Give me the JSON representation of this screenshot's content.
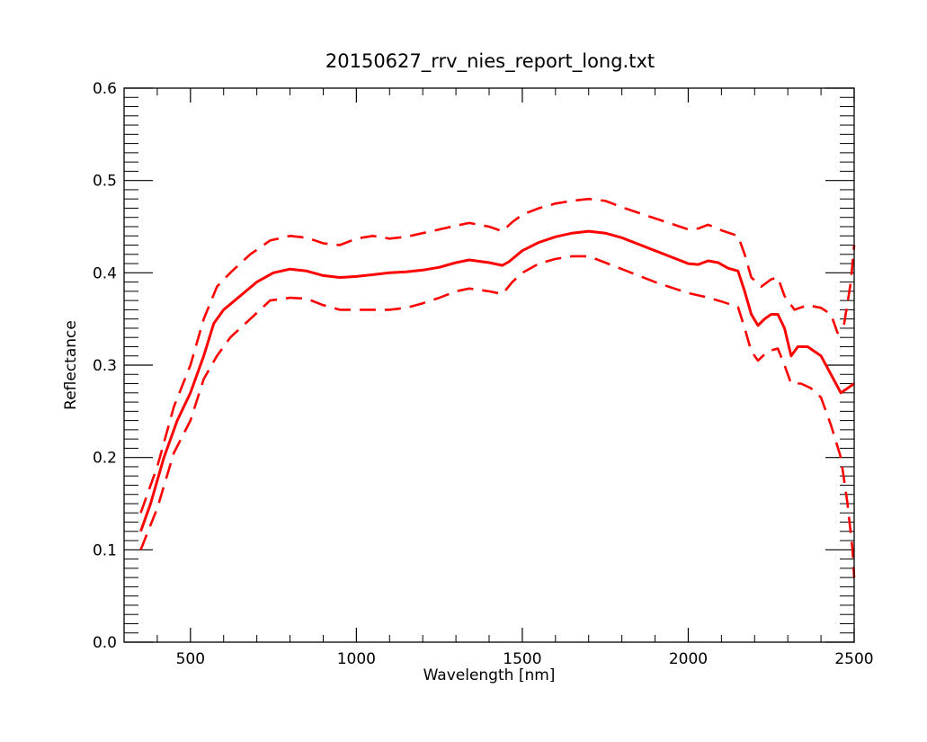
{
  "chart_data": {
    "type": "line",
    "title": "20150627_rrv_nies_report_long.txt",
    "xlabel": "Wavelength [nm]",
    "ylabel": "Reflectance",
    "xlim": [
      300,
      2500
    ],
    "ylim": [
      0.0,
      0.6
    ],
    "x_ticks": [
      500,
      1000,
      1500,
      2000,
      2500
    ],
    "x_tick_labels": [
      "500",
      "1000",
      "1500",
      "2000",
      "2500"
    ],
    "y_ticks": [
      0.0,
      0.1,
      0.2,
      0.3,
      0.4,
      0.5,
      0.6
    ],
    "y_tick_labels": [
      "0.0",
      "0.1",
      "0.2",
      "0.3",
      "0.4",
      "0.5",
      "0.6"
    ],
    "x_minor_step": 100,
    "y_minor_step": 0.01,
    "grid": false,
    "color": "#ff0000",
    "series": [
      {
        "style": "solid",
        "points": [
          [
            350,
            0.12
          ],
          [
            380,
            0.15
          ],
          [
            420,
            0.2
          ],
          [
            460,
            0.24
          ],
          [
            500,
            0.27
          ],
          [
            540,
            0.31
          ],
          [
            570,
            0.345
          ],
          [
            600,
            0.36
          ],
          [
            650,
            0.375
          ],
          [
            700,
            0.39
          ],
          [
            750,
            0.4
          ],
          [
            800,
            0.404
          ],
          [
            850,
            0.402
          ],
          [
            900,
            0.397
          ],
          [
            950,
            0.395
          ],
          [
            1000,
            0.396
          ],
          [
            1050,
            0.398
          ],
          [
            1100,
            0.4
          ],
          [
            1150,
            0.401
          ],
          [
            1200,
            0.403
          ],
          [
            1250,
            0.406
          ],
          [
            1300,
            0.411
          ],
          [
            1340,
            0.414
          ],
          [
            1400,
            0.411
          ],
          [
            1440,
            0.408
          ],
          [
            1460,
            0.412
          ],
          [
            1500,
            0.424
          ],
          [
            1550,
            0.433
          ],
          [
            1600,
            0.439
          ],
          [
            1650,
            0.443
          ],
          [
            1700,
            0.445
          ],
          [
            1750,
            0.443
          ],
          [
            1800,
            0.438
          ],
          [
            1850,
            0.431
          ],
          [
            1900,
            0.424
          ],
          [
            1950,
            0.417
          ],
          [
            2000,
            0.41
          ],
          [
            2030,
            0.409
          ],
          [
            2060,
            0.413
          ],
          [
            2090,
            0.411
          ],
          [
            2120,
            0.405
          ],
          [
            2150,
            0.402
          ],
          [
            2170,
            0.38
          ],
          [
            2190,
            0.355
          ],
          [
            2210,
            0.343
          ],
          [
            2230,
            0.35
          ],
          [
            2250,
            0.355
          ],
          [
            2270,
            0.355
          ],
          [
            2290,
            0.34
          ],
          [
            2310,
            0.31
          ],
          [
            2330,
            0.32
          ],
          [
            2360,
            0.32
          ],
          [
            2380,
            0.315
          ],
          [
            2400,
            0.31
          ],
          [
            2430,
            0.29
          ],
          [
            2460,
            0.27
          ],
          [
            2480,
            0.275
          ],
          [
            2500,
            0.28
          ]
        ]
      },
      {
        "style": "dashed",
        "points": [
          [
            350,
            0.14
          ],
          [
            400,
            0.19
          ],
          [
            450,
            0.255
          ],
          [
            500,
            0.3
          ],
          [
            540,
            0.35
          ],
          [
            580,
            0.385
          ],
          [
            620,
            0.4
          ],
          [
            680,
            0.42
          ],
          [
            740,
            0.435
          ],
          [
            800,
            0.44
          ],
          [
            850,
            0.438
          ],
          [
            900,
            0.432
          ],
          [
            950,
            0.43
          ],
          [
            1000,
            0.437
          ],
          [
            1050,
            0.44
          ],
          [
            1100,
            0.437
          ],
          [
            1150,
            0.439
          ],
          [
            1200,
            0.443
          ],
          [
            1250,
            0.447
          ],
          [
            1300,
            0.451
          ],
          [
            1340,
            0.454
          ],
          [
            1400,
            0.45
          ],
          [
            1440,
            0.445
          ],
          [
            1470,
            0.455
          ],
          [
            1500,
            0.463
          ],
          [
            1550,
            0.47
          ],
          [
            1600,
            0.475
          ],
          [
            1650,
            0.478
          ],
          [
            1700,
            0.48
          ],
          [
            1750,
            0.478
          ],
          [
            1800,
            0.471
          ],
          [
            1850,
            0.465
          ],
          [
            1900,
            0.459
          ],
          [
            1950,
            0.453
          ],
          [
            2000,
            0.447
          ],
          [
            2030,
            0.448
          ],
          [
            2060,
            0.452
          ],
          [
            2100,
            0.446
          ],
          [
            2150,
            0.44
          ],
          [
            2170,
            0.42
          ],
          [
            2190,
            0.395
          ],
          [
            2220,
            0.385
          ],
          [
            2250,
            0.393
          ],
          [
            2270,
            0.395
          ],
          [
            2290,
            0.375
          ],
          [
            2320,
            0.36
          ],
          [
            2360,
            0.365
          ],
          [
            2400,
            0.362
          ],
          [
            2430,
            0.355
          ],
          [
            2450,
            0.335
          ],
          [
            2470,
            0.345
          ],
          [
            2490,
            0.39
          ],
          [
            2500,
            0.43
          ]
        ]
      },
      {
        "style": "dashed",
        "points": [
          [
            350,
            0.1
          ],
          [
            400,
            0.145
          ],
          [
            450,
            0.205
          ],
          [
            500,
            0.24
          ],
          [
            540,
            0.285
          ],
          [
            580,
            0.31
          ],
          [
            620,
            0.33
          ],
          [
            680,
            0.35
          ],
          [
            740,
            0.37
          ],
          [
            800,
            0.373
          ],
          [
            850,
            0.372
          ],
          [
            900,
            0.365
          ],
          [
            950,
            0.36
          ],
          [
            1000,
            0.36
          ],
          [
            1050,
            0.36
          ],
          [
            1100,
            0.36
          ],
          [
            1150,
            0.362
          ],
          [
            1200,
            0.367
          ],
          [
            1250,
            0.373
          ],
          [
            1300,
            0.38
          ],
          [
            1340,
            0.383
          ],
          [
            1400,
            0.38
          ],
          [
            1440,
            0.377
          ],
          [
            1470,
            0.39
          ],
          [
            1500,
            0.4
          ],
          [
            1550,
            0.41
          ],
          [
            1600,
            0.415
          ],
          [
            1650,
            0.418
          ],
          [
            1700,
            0.418
          ],
          [
            1750,
            0.411
          ],
          [
            1800,
            0.404
          ],
          [
            1850,
            0.397
          ],
          [
            1900,
            0.39
          ],
          [
            1950,
            0.384
          ],
          [
            2000,
            0.378
          ],
          [
            2050,
            0.374
          ],
          [
            2100,
            0.369
          ],
          [
            2150,
            0.363
          ],
          [
            2170,
            0.34
          ],
          [
            2190,
            0.315
          ],
          [
            2210,
            0.305
          ],
          [
            2240,
            0.315
          ],
          [
            2270,
            0.318
          ],
          [
            2290,
            0.3
          ],
          [
            2310,
            0.28
          ],
          [
            2340,
            0.28
          ],
          [
            2370,
            0.275
          ],
          [
            2400,
            0.265
          ],
          [
            2430,
            0.235
          ],
          [
            2460,
            0.2
          ],
          [
            2480,
            0.15
          ],
          [
            2495,
            0.1
          ],
          [
            2500,
            0.07
          ]
        ]
      }
    ]
  }
}
